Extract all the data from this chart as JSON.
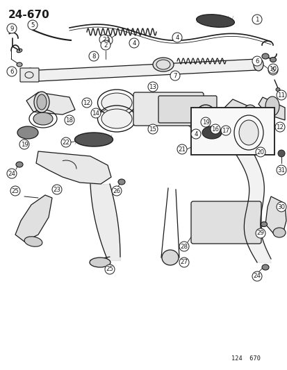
{
  "title": "24-670",
  "bg_color": "#ffffff",
  "line_color": "#1a1a1a",
  "text_color": "#1a1a1a",
  "diagram_code": "124  670",
  "figsize": [
    4.14,
    5.33
  ],
  "dpi": 100
}
